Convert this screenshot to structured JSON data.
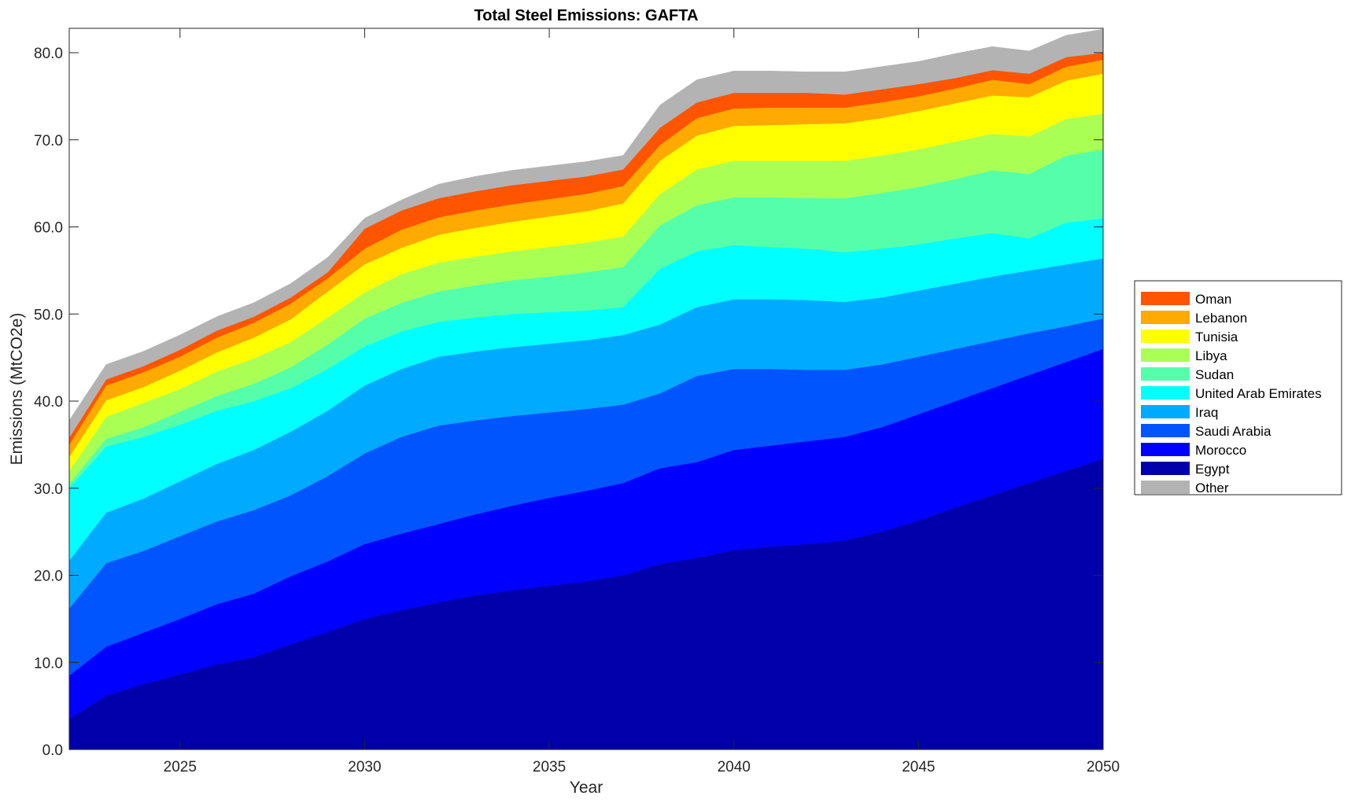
{
  "chart_data": {
    "type": "area",
    "stacked": true,
    "title": "Total Steel Emissions: GAFTA",
    "xlabel": "Year",
    "ylabel": "Emissions (MtCO2e)",
    "xlim": [
      2022,
      2050
    ],
    "ylim": [
      0,
      82.8
    ],
    "xticks": [
      2025,
      2030,
      2035,
      2040,
      2045,
      2050
    ],
    "yticks": [
      "0.0",
      "10.0",
      "20.0",
      "30.0",
      "40.0",
      "50.0",
      "60.0",
      "70.0",
      "80.0"
    ],
    "grid": false,
    "legend_position": "right",
    "x": [
      2022,
      2023,
      2024,
      2025,
      2026,
      2027,
      2028,
      2029,
      2030,
      2031,
      2032,
      2033,
      2034,
      2035,
      2036,
      2037,
      2038,
      2039,
      2040,
      2041,
      2042,
      2043,
      2044,
      2045,
      2046,
      2047,
      2048,
      2049,
      2050
    ],
    "series": [
      {
        "name": "Egypt",
        "color": "#0000aa",
        "values": [
          3.5,
          6.2,
          7.5,
          8.6,
          9.8,
          10.6,
          12.1,
          13.5,
          15.0,
          16.0,
          16.9,
          17.7,
          18.3,
          18.8,
          19.3,
          20.0,
          21.3,
          22.0,
          22.9,
          23.3,
          23.6,
          24.0,
          25.0,
          26.3,
          27.8,
          29.2,
          30.6,
          32.0,
          33.4
        ]
      },
      {
        "name": "Morocco",
        "color": "#0000ff",
        "values": [
          5.0,
          5.6,
          5.9,
          6.4,
          6.9,
          7.3,
          7.8,
          8.1,
          8.6,
          8.8,
          9.0,
          9.3,
          9.7,
          10.1,
          10.4,
          10.6,
          11.0,
          11.0,
          11.5,
          11.6,
          11.8,
          11.9,
          12.0,
          12.2,
          12.2,
          12.3,
          12.4,
          12.5,
          12.6
        ]
      },
      {
        "name": "Saudi Arabia",
        "color": "#0055ff",
        "values": [
          7.7,
          9.6,
          9.4,
          9.5,
          9.5,
          9.6,
          9.3,
          9.8,
          10.4,
          11.1,
          11.3,
          10.8,
          10.3,
          9.8,
          9.4,
          9.0,
          8.6,
          9.9,
          9.3,
          8.8,
          8.2,
          7.7,
          7.2,
          6.6,
          6.0,
          5.4,
          4.8,
          4.1,
          3.5
        ]
      },
      {
        "name": "Iraq",
        "color": "#00aaff",
        "values": [
          5.5,
          5.8,
          6.0,
          6.3,
          6.6,
          6.9,
          7.3,
          7.5,
          7.8,
          7.8,
          7.9,
          7.9,
          7.9,
          7.9,
          7.9,
          8.0,
          7.9,
          7.9,
          8.0,
          8.0,
          8.0,
          7.8,
          7.7,
          7.6,
          7.5,
          7.4,
          7.2,
          7.1,
          6.9
        ]
      },
      {
        "name": "United Arab Emirates",
        "color": "#00ffff",
        "values": [
          8.3,
          7.6,
          7.1,
          6.5,
          6.1,
          5.6,
          5.0,
          4.8,
          4.5,
          4.3,
          4.0,
          3.9,
          3.8,
          3.6,
          3.4,
          3.2,
          6.4,
          6.4,
          6.2,
          6.0,
          5.9,
          5.7,
          5.6,
          5.3,
          5.2,
          5.0,
          3.7,
          4.8,
          4.6
        ]
      },
      {
        "name": "Sudan",
        "color": "#55ffaa",
        "values": [
          0.5,
          0.9,
          1.1,
          1.5,
          1.7,
          2.0,
          2.4,
          2.8,
          3.2,
          3.3,
          3.5,
          3.7,
          3.9,
          4.1,
          4.4,
          4.6,
          5.0,
          5.3,
          5.5,
          5.7,
          5.8,
          6.2,
          6.4,
          6.6,
          6.8,
          7.2,
          7.4,
          7.7,
          7.9
        ]
      },
      {
        "name": "Libya",
        "color": "#aaff55",
        "values": [
          1.5,
          2.5,
          2.8,
          2.6,
          2.8,
          2.9,
          2.9,
          3.1,
          3.0,
          3.3,
          3.3,
          3.3,
          3.3,
          3.4,
          3.4,
          3.5,
          3.6,
          4.1,
          4.2,
          4.2,
          4.3,
          4.3,
          4.3,
          4.3,
          4.3,
          4.2,
          4.3,
          4.2,
          4.1
        ]
      },
      {
        "name": "Tunisia",
        "color": "#ffff00",
        "values": [
          1.6,
          1.9,
          1.8,
          2.1,
          2.2,
          2.4,
          2.6,
          3.0,
          3.2,
          3.0,
          3.2,
          3.3,
          3.4,
          3.5,
          3.6,
          3.8,
          3.8,
          3.9,
          4.0,
          4.1,
          4.2,
          4.3,
          4.3,
          4.4,
          4.4,
          4.4,
          4.5,
          4.4,
          4.6
        ]
      },
      {
        "name": "Lebanon",
        "color": "#ffaa00",
        "values": [
          1.4,
          1.7,
          1.7,
          1.6,
          1.7,
          1.7,
          1.8,
          1.5,
          1.8,
          2.1,
          2.0,
          2.0,
          2.0,
          2.0,
          2.0,
          2.0,
          1.8,
          2.0,
          2.0,
          2.0,
          1.9,
          1.8,
          1.8,
          1.7,
          1.7,
          1.8,
          1.5,
          1.6,
          1.6
        ]
      },
      {
        "name": "Oman",
        "color": "#ff5500",
        "values": [
          0.8,
          0.7,
          0.7,
          0.8,
          0.8,
          0.7,
          0.7,
          0.7,
          2.3,
          2.2,
          2.2,
          2.2,
          2.2,
          2.1,
          2.0,
          1.9,
          2.0,
          1.8,
          1.8,
          1.7,
          1.7,
          1.5,
          1.5,
          1.4,
          1.2,
          1.1,
          1.2,
          1.1,
          0.8
        ]
      },
      {
        "name": "Other",
        "color": "#b3b3b3",
        "values": [
          2.0,
          1.7,
          1.7,
          1.7,
          1.6,
          1.6,
          1.6,
          1.7,
          1.2,
          1.2,
          1.6,
          1.7,
          1.7,
          1.7,
          1.7,
          1.6,
          2.6,
          2.6,
          2.5,
          2.5,
          2.4,
          2.6,
          2.6,
          2.6,
          2.8,
          2.7,
          2.6,
          2.5,
          2.7
        ]
      }
    ],
    "legend_order": [
      "Oman",
      "Lebanon",
      "Tunisia",
      "Libya",
      "Sudan",
      "United Arab Emirates",
      "Iraq",
      "Saudi Arabia",
      "Morocco",
      "Egypt",
      "Other"
    ]
  }
}
